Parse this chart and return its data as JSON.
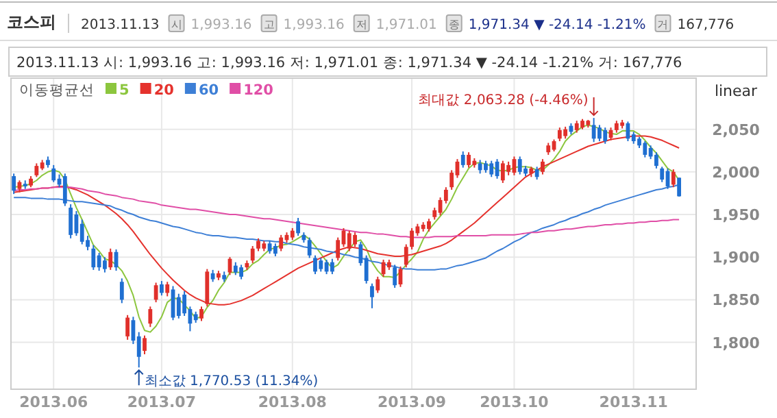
{
  "chart_data": {
    "type": "candlestick",
    "title": "코스피",
    "subtitle": "2013.11.13 시: 1,993.16 고: 1,993.16 저: 1,971.01 종: 1,971.34 ▼  -24.14  -1.21% 거: 167,776",
    "annotations": [
      "2013.11.13",
      "시",
      "1,993.16",
      "고",
      "1,993.16",
      "저",
      "1,971.01",
      "종",
      "1,971.34 ▼ -24.14 -1.21%",
      "거",
      "167,776",
      "linear",
      "최대값 2,063.28 (-4.46%)",
      "최소값 1,770.53 (11.34%)"
    ],
    "legend_title": "이동평균선",
    "legend": "top left",
    "grid": true,
    "ylim": [
      1745,
      2110
    ],
    "yticks": [
      {
        "value": 1800,
        "label": "1,800"
      },
      {
        "value": 1850,
        "label": "1,850"
      },
      {
        "value": 1900,
        "label": "1,900"
      },
      {
        "value": 1950,
        "label": "1,950"
      },
      {
        "value": 2000,
        "label": "2,000"
      },
      {
        "value": 2050,
        "label": "2,050"
      }
    ],
    "categories": [
      null,
      null,
      null,
      null,
      null,
      null,
      null,
      "2013.06",
      null,
      null,
      null,
      null,
      null,
      null,
      null,
      null,
      null,
      null,
      null,
      null,
      null,
      null,
      null,
      null,
      null,
      null,
      "2013.07",
      null,
      null,
      null,
      null,
      null,
      null,
      null,
      null,
      null,
      null,
      null,
      null,
      null,
      null,
      null,
      null,
      null,
      null,
      null,
      null,
      null,
      null,
      "2013.08",
      null,
      null,
      null,
      null,
      null,
      null,
      null,
      null,
      null,
      null,
      null,
      null,
      null,
      null,
      null,
      null,
      null,
      null,
      null,
      null,
      "2013.09",
      null,
      null,
      null,
      null,
      null,
      null,
      null,
      null,
      null,
      null,
      null,
      null,
      null,
      null,
      null,
      null,
      null,
      "2013.10",
      null,
      null,
      null,
      null,
      null,
      null,
      null,
      null,
      null,
      null,
      null,
      null,
      null,
      null,
      null,
      null,
      null,
      null,
      null,
      null,
      "2013.11",
      null,
      null,
      null,
      null,
      null,
      null,
      null,
      null
    ],
    "ohlc": [
      [
        1995,
        1998,
        1974,
        1978
      ],
      [
        1980,
        1990,
        1976,
        1988
      ],
      [
        1986,
        1990,
        1980,
        1983
      ],
      [
        1984,
        1995,
        1982,
        1992
      ],
      [
        1996,
        2010,
        1994,
        2007
      ],
      [
        2004,
        2014,
        2002,
        2011
      ],
      [
        2014,
        2018,
        2005,
        2008
      ],
      [
        2004,
        2008,
        1988,
        1990
      ],
      [
        1992,
        1997,
        1982,
        1985
      ],
      [
        1995,
        1998,
        1960,
        1963
      ],
      [
        1958,
        1962,
        1922,
        1926
      ],
      [
        1950,
        1954,
        1925,
        1928
      ],
      [
        1939,
        1944,
        1915,
        1918
      ],
      [
        1920,
        1925,
        1908,
        1912
      ],
      [
        1910,
        1914,
        1885,
        1888
      ],
      [
        1902,
        1905,
        1884,
        1888
      ],
      [
        1896,
        1900,
        1882,
        1886
      ],
      [
        1888,
        1910,
        1885,
        1906
      ],
      [
        1906,
        1909,
        1884,
        1888
      ],
      [
        1871,
        1875,
        1846,
        1850
      ],
      [
        1807,
        1832,
        1803,
        1829
      ],
      [
        1826,
        1830,
        1798,
        1802
      ],
      [
        1807,
        1812,
        1770.53,
        1783
      ],
      [
        1790,
        1808,
        1786,
        1805
      ],
      [
        1822,
        1842,
        1818,
        1839
      ],
      [
        1850,
        1870,
        1847,
        1867
      ],
      [
        1868,
        1872,
        1855,
        1858
      ],
      [
        1858,
        1871,
        1854,
        1868
      ],
      [
        1862,
        1866,
        1826,
        1829
      ],
      [
        1853,
        1857,
        1828,
        1831
      ],
      [
        1856,
        1860,
        1831,
        1834
      ],
      [
        1839,
        1842,
        1813,
        1822
      ],
      [
        1833,
        1836,
        1823,
        1826
      ],
      [
        1828,
        1842,
        1825,
        1839
      ],
      [
        1845,
        1886,
        1842,
        1883
      ],
      [
        1881,
        1885,
        1871,
        1874
      ],
      [
        1876,
        1884,
        1873,
        1881
      ],
      [
        1879,
        1883,
        1871,
        1874
      ],
      [
        1882,
        1900,
        1879,
        1898
      ],
      [
        1890,
        1894,
        1879,
        1882
      ],
      [
        1888,
        1891,
        1874,
        1877
      ],
      [
        1888,
        1896,
        1885,
        1893
      ],
      [
        1896,
        1913,
        1893,
        1910
      ],
      [
        1910,
        1922,
        1907,
        1919
      ],
      [
        1910,
        1919,
        1907,
        1916
      ],
      [
        1916,
        1919,
        1904,
        1907
      ],
      [
        1913,
        1916,
        1901,
        1904
      ],
      [
        1910,
        1926,
        1907,
        1923
      ],
      [
        1920,
        1929,
        1917,
        1926
      ],
      [
        1923,
        1934,
        1920,
        1931
      ],
      [
        1942,
        1946,
        1925,
        1928
      ],
      [
        1926,
        1929,
        1917,
        1920
      ],
      [
        1920,
        1923,
        1899,
        1902
      ],
      [
        1899,
        1902,
        1880,
        1883
      ],
      [
        1896,
        1899,
        1883,
        1886
      ],
      [
        1894,
        1897,
        1880,
        1883
      ],
      [
        1894,
        1898,
        1880,
        1883
      ],
      [
        1899,
        1923,
        1896,
        1920
      ],
      [
        1915,
        1934,
        1912,
        1931
      ],
      [
        1910,
        1931,
        1907,
        1928
      ],
      [
        1915,
        1929,
        1912,
        1926
      ],
      [
        1915,
        1918,
        1890,
        1893
      ],
      [
        1899,
        1902,
        1869,
        1872
      ],
      [
        1866,
        1869,
        1840,
        1853
      ],
      [
        1861,
        1877,
        1858,
        1874
      ],
      [
        1880,
        1897,
        1877,
        1894
      ],
      [
        1888,
        1897,
        1885,
        1894
      ],
      [
        1888,
        1891,
        1864,
        1867
      ],
      [
        1868,
        1889,
        1865,
        1886
      ],
      [
        1891,
        1915,
        1888,
        1912
      ],
      [
        1912,
        1934,
        1909,
        1931
      ],
      [
        1928,
        1939,
        1925,
        1936
      ],
      [
        1933,
        1941,
        1930,
        1938
      ],
      [
        1933,
        1945,
        1930,
        1942
      ],
      [
        1947,
        1958,
        1944,
        1955
      ],
      [
        1952,
        1970,
        1949,
        1967
      ],
      [
        1966,
        1982,
        1963,
        1979
      ],
      [
        1982,
        2002,
        1979,
        1999
      ],
      [
        1996,
        2015,
        1993,
        2012
      ],
      [
        2020,
        2024,
        2005,
        2008
      ],
      [
        2008,
        2023,
        2005,
        2020
      ],
      [
        2008,
        2016,
        2005,
        2013
      ],
      [
        2010,
        2014,
        1998,
        2002
      ],
      [
        2010,
        2013,
        1999,
        2002
      ],
      [
        2010,
        2013,
        1994,
        1997
      ],
      [
        2012,
        2015,
        1992,
        1995
      ],
      [
        1990,
        2013,
        1987,
        2010
      ],
      [
        2000,
        2012,
        1996,
        2008
      ],
      [
        1999,
        2018,
        1996,
        2015
      ],
      [
        2015,
        2018,
        1997,
        2000
      ],
      [
        2004,
        2007,
        1995,
        1998
      ],
      [
        1998,
        2006,
        1994,
        2004
      ],
      [
        2003,
        2006,
        1991,
        1994
      ],
      [
        2000,
        2015,
        1997,
        2012
      ],
      [
        2023,
        2034,
        2020,
        2031
      ],
      [
        2026,
        2038,
        2024,
        2036
      ],
      [
        2039,
        2052,
        2036,
        2049
      ],
      [
        2042,
        2053,
        2039,
        2050
      ],
      [
        2054,
        2057,
        2044,
        2047
      ],
      [
        2049,
        2060,
        2046,
        2057
      ],
      [
        2052,
        2062,
        2050,
        2060
      ],
      [
        2055,
        2061,
        2052,
        2060
      ],
      [
        2055,
        2063.28,
        2035,
        2039
      ],
      [
        2052,
        2055,
        2036,
        2039
      ],
      [
        2049,
        2052,
        2033,
        2036
      ],
      [
        2040,
        2052,
        2037,
        2049
      ],
      [
        2049,
        2060,
        2046,
        2057
      ],
      [
        2054,
        2061,
        2051,
        2058
      ],
      [
        2057,
        2059,
        2036,
        2039
      ],
      [
        2044,
        2047,
        2033,
        2036
      ],
      [
        2039,
        2041,
        2028,
        2031
      ],
      [
        2034,
        2036,
        2017,
        2020
      ],
      [
        2028,
        2031,
        2015,
        2018
      ],
      [
        2020,
        2023,
        2004,
        2007
      ],
      [
        2004,
        2006,
        1988,
        1991
      ],
      [
        2001,
        2004,
        1980,
        1983
      ],
      [
        1985,
        2003,
        1982,
        2000
      ],
      [
        1993.16,
        1993.16,
        1971.01,
        1971.34
      ]
    ],
    "series": [
      {
        "name": "5",
        "type": "line",
        "color": "#8cc63e",
        "values": [
          1982,
          1983,
          1984,
          1986,
          1990,
          1996,
          2000,
          2002,
          2000,
          1991,
          1974,
          1958,
          1944,
          1929,
          1914,
          1907,
          1898,
          1896,
          1891,
          1884,
          1872,
          1855,
          1830,
          1814,
          1812,
          1819,
          1830,
          1847,
          1852,
          1851,
          1844,
          1837,
          1828,
          1830,
          1841,
          1849,
          1861,
          1870,
          1882,
          1882,
          1882,
          1885,
          1892,
          1896,
          1903,
          1909,
          1911,
          1914,
          1915,
          1918,
          1922,
          1926,
          1921,
          1913,
          1904,
          1895,
          1887,
          1891,
          1901,
          1909,
          1918,
          1920,
          1910,
          1894,
          1884,
          1877,
          1877,
          1876,
          1883,
          1891,
          1898,
          1906,
          1921,
          1932,
          1940,
          1948,
          1956,
          1968,
          1982,
          1993,
          2004,
          2010,
          2011,
          2009,
          2007,
          2002,
          2001,
          2002,
          2005,
          2006,
          2006,
          2005,
          2002,
          2002,
          2008,
          2015,
          2024,
          2036,
          2043,
          2048,
          2053,
          2055,
          2053,
          2051,
          2047,
          2045,
          2044,
          2048,
          2048,
          2048,
          2044,
          2037,
          2029,
          2022,
          2013,
          2004,
          2000,
          1990
        ]
      },
      {
        "name": "20",
        "type": "line",
        "color": "#e5322d",
        "values": [
          1976,
          1977,
          1978,
          1979,
          1980,
          1981,
          1981,
          1982,
          1983,
          1983,
          1981,
          1979,
          1976,
          1973,
          1969,
          1965,
          1961,
          1956,
          1951,
          1945,
          1938,
          1930,
          1921,
          1912,
          1903,
          1895,
          1887,
          1880,
          1873,
          1867,
          1861,
          1856,
          1852,
          1849,
          1846,
          1845,
          1844,
          1844,
          1845,
          1847,
          1849,
          1852,
          1855,
          1859,
          1863,
          1867,
          1871,
          1875,
          1879,
          1883,
          1887,
          1890,
          1893,
          1896,
          1899,
          1902,
          1905,
          1908,
          1910,
          1912,
          1911,
          1910,
          1908,
          1906,
          1904,
          1903,
          1902,
          1901,
          1901,
          1902,
          1903,
          1905,
          1907,
          1909,
          1911,
          1913,
          1916,
          1920,
          1925,
          1930,
          1935,
          1940,
          1946,
          1952,
          1958,
          1964,
          1970,
          1976,
          1982,
          1988,
          1994,
          1998,
          2002,
          2006,
          2009,
          2012,
          2015,
          2018,
          2021,
          2024,
          2027,
          2030,
          2032,
          2034,
          2036,
          2038,
          2039,
          2040,
          2041,
          2042,
          2042,
          2042,
          2041,
          2039,
          2037,
          2034,
          2031,
          2028
        ]
      },
      {
        "name": "60",
        "type": "line",
        "color": "#3d7fd6",
        "values": [
          1970,
          1970,
          1970,
          1969,
          1969,
          1969,
          1968,
          1968,
          1968,
          1967,
          1966,
          1965,
          1965,
          1964,
          1963,
          1962,
          1961,
          1960,
          1957,
          1955,
          1952,
          1950,
          1947,
          1945,
          1943,
          1942,
          1940,
          1938,
          1936,
          1935,
          1933,
          1931,
          1929,
          1928,
          1926,
          1925,
          1925,
          1924,
          1923,
          1923,
          1922,
          1921,
          1921,
          1920,
          1919,
          1919,
          1918,
          1918,
          1916,
          1915,
          1914,
          1912,
          1911,
          1910,
          1909,
          1907,
          1906,
          1905,
          1903,
          1902,
          1900,
          1899,
          1897,
          1895,
          1894,
          1892,
          1890,
          1889,
          1887,
          1886,
          1886,
          1885,
          1885,
          1885,
          1885,
          1886,
          1886,
          1888,
          1890,
          1891,
          1893,
          1895,
          1897,
          1899,
          1903,
          1907,
          1910,
          1914,
          1918,
          1921,
          1925,
          1929,
          1931,
          1934,
          1936,
          1938,
          1941,
          1943,
          1946,
          1948,
          1951,
          1953,
          1956,
          1958,
          1961,
          1963,
          1965,
          1967,
          1969,
          1971,
          1973,
          1975,
          1977,
          1979,
          1980,
          1982,
          1983,
          1985
        ]
      },
      {
        "name": "120",
        "type": "line",
        "color": "#e04ea6",
        "values": [
          1978,
          1979,
          1979,
          1980,
          1980,
          1981,
          1981,
          1982,
          1982,
          1982,
          1982,
          1981,
          1980,
          1978,
          1977,
          1976,
          1974,
          1973,
          1972,
          1970,
          1969,
          1968,
          1966,
          1965,
          1964,
          1963,
          1961,
          1960,
          1959,
          1958,
          1957,
          1956,
          1956,
          1955,
          1954,
          1953,
          1952,
          1951,
          1950,
          1950,
          1949,
          1948,
          1947,
          1946,
          1945,
          1945,
          1944,
          1943,
          1942,
          1941,
          1940,
          1939,
          1938,
          1937,
          1936,
          1935,
          1934,
          1933,
          1932,
          1931,
          1930,
          1929,
          1929,
          1928,
          1927,
          1927,
          1926,
          1925,
          1924,
          1924,
          1923,
          1923,
          1923,
          1923,
          1924,
          1924,
          1924,
          1924,
          1925,
          1925,
          1925,
          1925,
          1925,
          1925,
          1926,
          1926,
          1926,
          1926,
          1926,
          1927,
          1928,
          1929,
          1929,
          1930,
          1931,
          1931,
          1932,
          1933,
          1933,
          1934,
          1935,
          1936,
          1936,
          1937,
          1938,
          1938,
          1939,
          1939,
          1940,
          1940,
          1941,
          1941,
          1942,
          1942,
          1943,
          1943,
          1944,
          1944
        ]
      }
    ]
  }
}
